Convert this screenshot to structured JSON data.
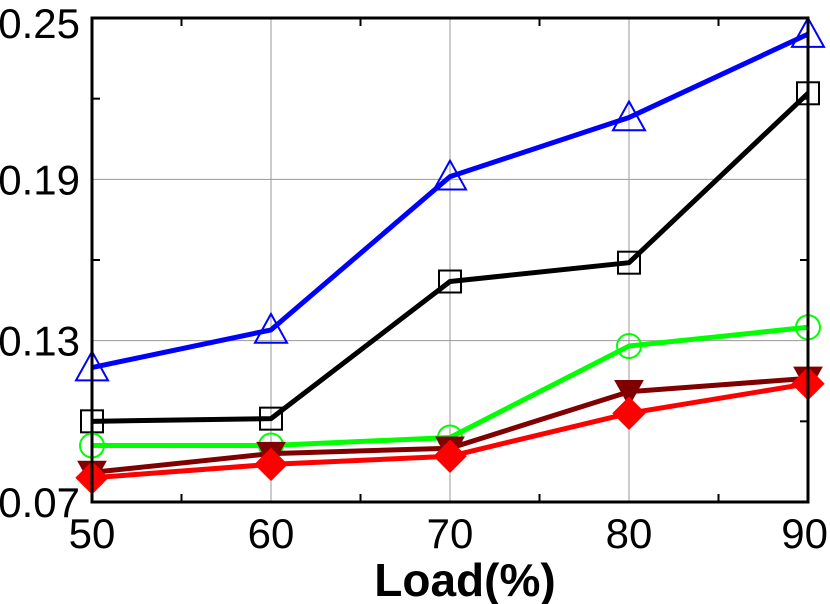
{
  "chart_data": {
    "type": "line",
    "title": "",
    "xlabel": "Load(%)",
    "ylabel": "",
    "x": [
      50,
      60,
      70,
      80,
      90
    ],
    "xlim": [
      50,
      90
    ],
    "ylim": [
      0.07,
      0.25
    ],
    "x_ticks": [
      "50",
      "60",
      "70",
      "80",
      "90"
    ],
    "y_ticks": [
      "0.07",
      "0.13",
      "0.19",
      "0.25"
    ],
    "y_tick_values": [
      0.07,
      0.13,
      0.19,
      0.25
    ],
    "grid": true,
    "series": [
      {
        "marker": "triangle-up-open",
        "color": "#0000ff",
        "values": [
          0.12,
          0.134,
          0.191,
          0.213,
          0.244
        ]
      },
      {
        "marker": "square-open",
        "color": "#000000",
        "values": [
          0.1,
          0.101,
          0.152,
          0.159,
          0.222
        ]
      },
      {
        "marker": "circle-open",
        "color": "#00ff00",
        "values": [
          0.091,
          0.091,
          0.094,
          0.128,
          0.135
        ]
      },
      {
        "marker": "triangle-down-filled",
        "color": "#800000",
        "values": [
          0.081,
          0.088,
          0.09,
          0.111,
          0.116
        ]
      },
      {
        "marker": "diamond-filled",
        "color": "#ff0000",
        "values": [
          0.079,
          0.084,
          0.087,
          0.103,
          0.114
        ]
      }
    ]
  }
}
